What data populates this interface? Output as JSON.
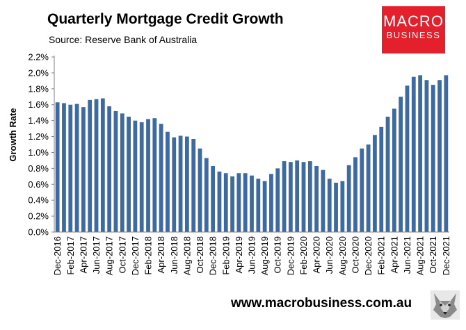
{
  "header": {
    "title": "Quarterly Mortgage Credit Growth",
    "subtitle": "Source: Reserve Bank of Australia"
  },
  "logo": {
    "line1": "MACRO",
    "line2": "BUSINESS",
    "color": "#e3202c"
  },
  "footer": {
    "website": "www.macrobusiness.com.au",
    "wolf_icon": "wolf-icon"
  },
  "chart_data": {
    "type": "bar",
    "title": "Quarterly Mortgage Credit Growth",
    "subtitle": "Source: Reserve Bank of Australia",
    "xlabel": "",
    "ylabel": "Growth Rate",
    "ylim": [
      0,
      2.2
    ],
    "yticks": [
      0,
      0.2,
      0.4,
      0.6,
      0.8,
      1.0,
      1.2,
      1.4,
      1.6,
      1.8,
      2.0,
      2.2
    ],
    "ytick_labels": [
      "0.0%",
      "0.2%",
      "0.4%",
      "0.6%",
      "0.8%",
      "1.0%",
      "1.2%",
      "1.4%",
      "1.6%",
      "1.8%",
      "2.0%",
      "2.2%"
    ],
    "bar_color": "#3f6aa0",
    "grid": false,
    "legend": "none",
    "categories": [
      "Dec-2016",
      "Jan-2017",
      "Feb-2017",
      "Mar-2017",
      "Apr-2017",
      "May-2017",
      "Jun-2017",
      "Jul-2017",
      "Aug-2017",
      "Sep-2017",
      "Oct-2017",
      "Nov-2017",
      "Dec-2017",
      "Jan-2018",
      "Feb-2018",
      "Mar-2018",
      "Apr-2018",
      "May-2018",
      "Jun-2018",
      "Jul-2018",
      "Aug-2018",
      "Sep-2018",
      "Oct-2018",
      "Nov-2018",
      "Dec-2018",
      "Jan-2019",
      "Feb-2019",
      "Mar-2019",
      "Apr-2019",
      "May-2019",
      "Jun-2019",
      "Jul-2019",
      "Aug-2019",
      "Sep-2019",
      "Oct-2019",
      "Nov-2019",
      "Dec-2019",
      "Jan-2020",
      "Feb-2020",
      "Mar-2020",
      "Apr-2020",
      "May-2020",
      "Jun-2020",
      "Jul-2020",
      "Aug-2020",
      "Sep-2020",
      "Oct-2020",
      "Nov-2020",
      "Dec-2020",
      "Jan-2021",
      "Feb-2021",
      "Mar-2021",
      "Apr-2021",
      "May-2021",
      "Jun-2021",
      "Jul-2021",
      "Aug-2021",
      "Sep-2021",
      "Oct-2021",
      "Nov-2021",
      "Dec-2021"
    ],
    "xtick_labels": [
      "Dec-2016",
      "Feb-2017",
      "Apr-2017",
      "Jun-2017",
      "Aug-2017",
      "Oct-2017",
      "Dec-2017",
      "Feb-2018",
      "Apr-2018",
      "Jun-2018",
      "Aug-2018",
      "Oct-2018",
      "Dec-2018",
      "Feb-2019",
      "Apr-2019",
      "Jun-2019",
      "Aug-2019",
      "Oct-2019",
      "Dec-2019",
      "Feb-2020",
      "Apr-2020",
      "Jun-2020",
      "Aug-2020",
      "Oct-2020",
      "Dec-2020",
      "Feb-2021",
      "Apr-2021",
      "Jun-2021",
      "Aug-2021",
      "Oct-2021",
      "Dec-2021"
    ],
    "values": [
      1.63,
      1.62,
      1.6,
      1.61,
      1.57,
      1.66,
      1.67,
      1.68,
      1.58,
      1.52,
      1.49,
      1.45,
      1.4,
      1.38,
      1.42,
      1.43,
      1.36,
      1.26,
      1.19,
      1.21,
      1.2,
      1.17,
      1.05,
      0.93,
      0.83,
      0.76,
      0.74,
      0.7,
      0.74,
      0.74,
      0.71,
      0.67,
      0.64,
      0.73,
      0.8,
      0.89,
      0.88,
      0.9,
      0.88,
      0.89,
      0.83,
      0.78,
      0.67,
      0.62,
      0.64,
      0.84,
      0.94,
      1.05,
      1.1,
      1.22,
      1.32,
      1.45,
      1.55,
      1.7,
      1.84,
      1.95,
      1.97,
      1.91,
      1.85,
      1.91,
      1.97
    ]
  }
}
